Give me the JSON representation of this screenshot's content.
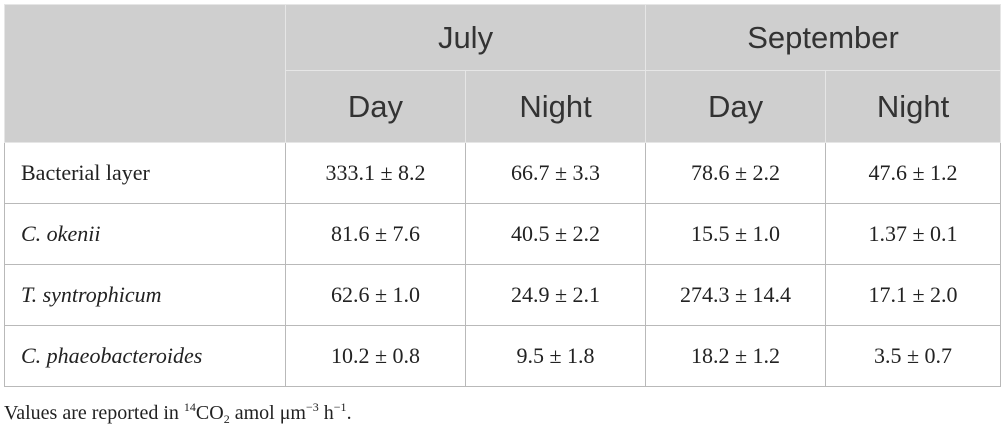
{
  "table": {
    "header": {
      "groups": [
        "July",
        "September"
      ],
      "subheaders": [
        "Day",
        "Night",
        "Day",
        "Night"
      ]
    },
    "rows": [
      [
        "Bacterial layer",
        "333.1 ± 8.2",
        "66.7 ± 3.3",
        "78.6 ± 2.2",
        "47.6 ± 1.2"
      ],
      [
        "C. okenii",
        "81.6 ± 7.6",
        "40.5 ± 2.2",
        "15.5 ± 1.0",
        "1.37 ± 0.1"
      ],
      [
        "T. syntrophicum",
        "62.6 ± 1.0",
        "24.9 ± 2.1",
        "274.3 ± 14.4",
        "17.1 ± 2.0"
      ],
      [
        "C. phaeobacteroides",
        "10.2 ± 0.8",
        "9.5 ± 1.8",
        "18.2 ± 1.2",
        "3.5 ± 0.7"
      ]
    ]
  },
  "footnote": [
    "Values are reported in ",
    "14",
    "CO",
    "2",
    " amol μm",
    "−3",
    " h",
    "−1",
    "."
  ]
}
